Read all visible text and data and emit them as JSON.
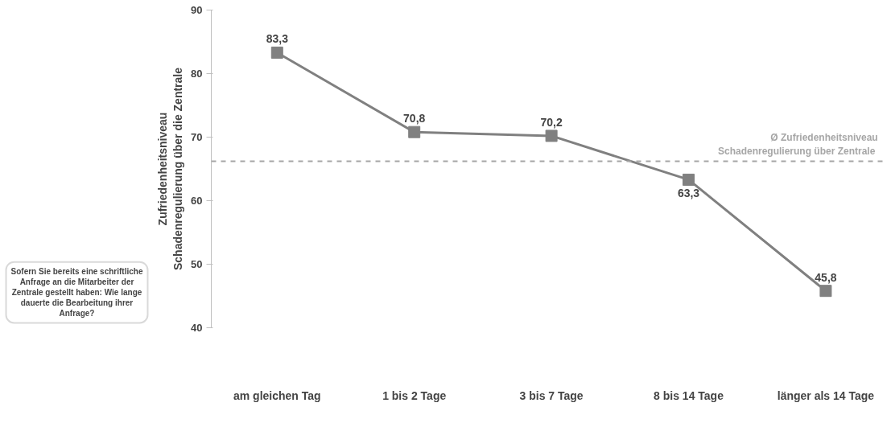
{
  "chart_data": {
    "type": "line",
    "ylabel": "Zufriedenheitsniveau\nSchadenregulierung über die Zentrale",
    "categories": [
      "am gleichen Tag",
      "1 bis 2 Tage",
      "3 bis 7 Tage",
      "8 bis 14 Tage",
      "länger als 14 Tage"
    ],
    "series": [
      {
        "color": "#808080",
        "values": [
          83.3,
          70.8,
          70.2,
          63.3,
          45.8
        ],
        "value_labels": [
          "83,3",
          "70,8",
          "70,2",
          "63,3",
          "45,8"
        ]
      }
    ],
    "marker": "square",
    "line_style": "solid",
    "ylim": [
      40,
      90
    ],
    "yticks": [
      40,
      50,
      60,
      70,
      80,
      90
    ],
    "grid": false,
    "ref_lines": [
      {
        "axis": "y",
        "value": 66.2,
        "label": "Ø Zufriedenheitsniveau\nSchadenregulierung  über Zentrale",
        "color": "#a6a6a6",
        "line_style": "dashed"
      }
    ],
    "annotations": [
      "Sofern Sie bereits eine schriftliche\nAnfrage an die Mitarbeiter der\nZentrale gestellt haben: Wie lange\ndauerte die Bearbeitung ihrer\nAnfrage?"
    ]
  }
}
